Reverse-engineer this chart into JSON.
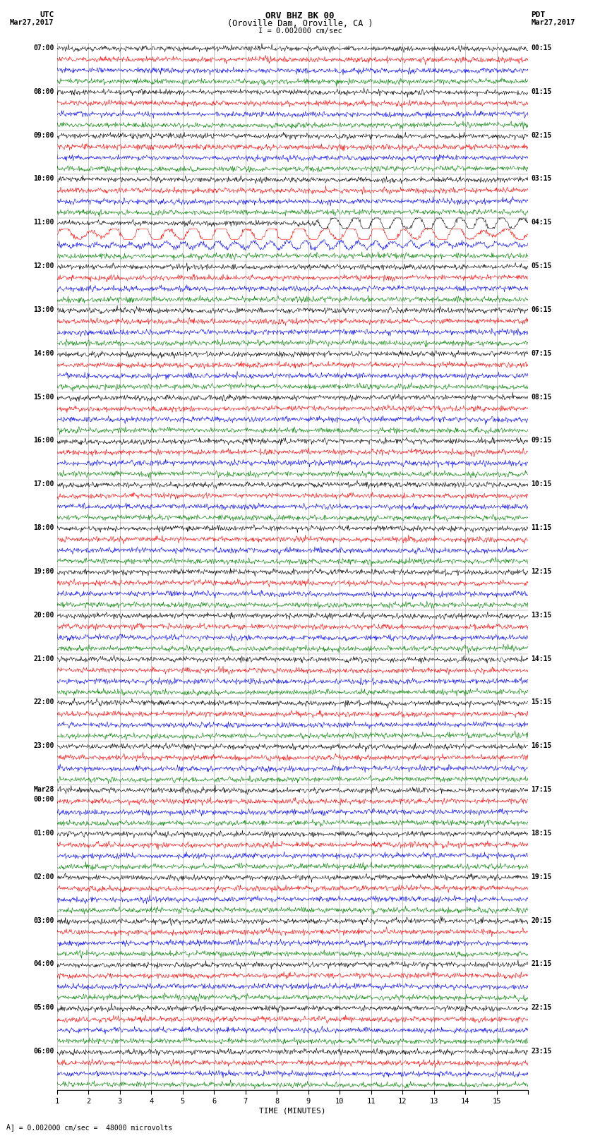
{
  "title_line1": "ORV BHZ BK 00",
  "title_line2": "(Oroville Dam, Oroville, CA )",
  "title_line3": "I = 0.002000 cm/sec",
  "utc_label": "UTC",
  "utc_date": "Mar27,2017",
  "pdt_label": "PDT",
  "pdt_date": "Mar27,2017",
  "xlabel": "TIME (MINUTES)",
  "footer": "A ] = 0.002000 cm/sec =  48000 microvolts",
  "bg_color": "#ffffff",
  "grid_color": "#999999",
  "trace_colors": [
    "black",
    "red",
    "blue",
    "green"
  ],
  "n_minutes": 15,
  "noise_std": 0.12,
  "label_fontsize": 7.0,
  "utc_hours": [
    "07:00",
    "08:00",
    "09:00",
    "10:00",
    "11:00",
    "12:00",
    "13:00",
    "14:00",
    "15:00",
    "16:00",
    "17:00",
    "18:00",
    "19:00",
    "20:00",
    "21:00",
    "22:00",
    "23:00",
    "Mar28\n00:00",
    "01:00",
    "02:00",
    "03:00",
    "04:00",
    "05:00",
    "06:00"
  ],
  "pdt_hours": [
    "00:15",
    "01:15",
    "02:15",
    "03:15",
    "04:15",
    "05:15",
    "06:15",
    "07:15",
    "08:15",
    "09:15",
    "10:15",
    "11:15",
    "12:15",
    "13:15",
    "14:15",
    "15:15",
    "16:15",
    "17:15",
    "18:15",
    "19:15",
    "20:15",
    "21:15",
    "22:15",
    "23:15"
  ],
  "event_hour_idx": 4,
  "event_trace_colors": [
    "black",
    "red"
  ],
  "event_amplitudes": [
    0.8,
    1.0
  ],
  "event_freq": 1.2
}
